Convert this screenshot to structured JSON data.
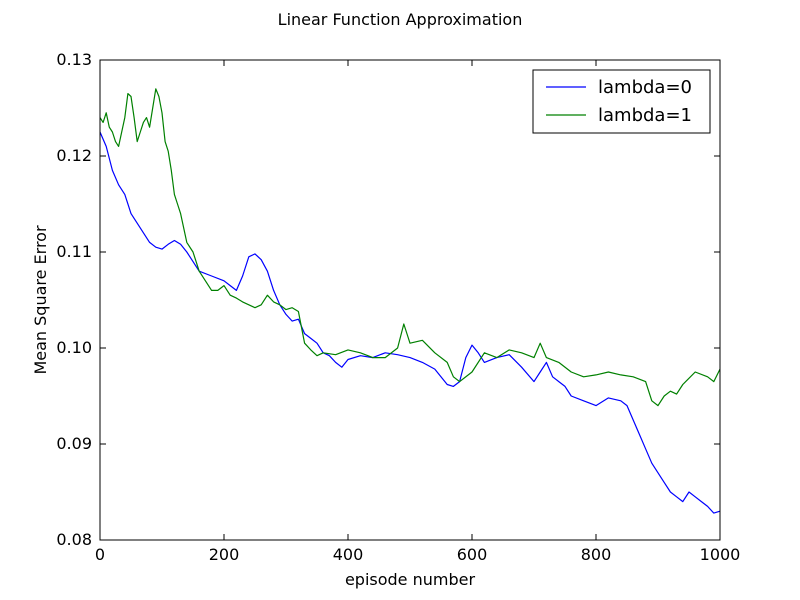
{
  "chart_data": {
    "type": "line",
    "title": "Linear Function Approximation",
    "xlabel": "episode number",
    "ylabel": "Mean Square Error",
    "xlim": [
      0,
      1000
    ],
    "ylim": [
      0.08,
      0.13
    ],
    "xticks": [
      0,
      200,
      400,
      600,
      800,
      1000
    ],
    "xtick_labels": [
      "0",
      "200",
      "400",
      "600",
      "800",
      "1000"
    ],
    "yticks": [
      0.08,
      0.09,
      0.1,
      0.11,
      0.12,
      0.13
    ],
    "ytick_labels": [
      "0.08",
      "0.09",
      "0.10",
      "0.11",
      "0.12",
      "0.13"
    ],
    "grid": false,
    "legend_position": "top-right",
    "series": [
      {
        "name": "lambda=0",
        "color": "#0000ff",
        "x": [
          0,
          10,
          20,
          30,
          40,
          50,
          60,
          70,
          80,
          90,
          100,
          110,
          120,
          130,
          140,
          150,
          160,
          180,
          200,
          210,
          220,
          230,
          240,
          250,
          260,
          270,
          280,
          290,
          300,
          310,
          320,
          330,
          340,
          350,
          360,
          370,
          380,
          390,
          400,
          420,
          440,
          460,
          480,
          500,
          520,
          540,
          560,
          570,
          580,
          590,
          600,
          610,
          620,
          640,
          660,
          680,
          700,
          710,
          720,
          730,
          740,
          750,
          760,
          780,
          800,
          820,
          840,
          850,
          860,
          870,
          880,
          890,
          900,
          910,
          920,
          930,
          940,
          950,
          960,
          970,
          980,
          990,
          1000
        ],
        "values": [
          0.1225,
          0.121,
          0.1185,
          0.117,
          0.116,
          0.114,
          0.113,
          0.112,
          0.111,
          0.1105,
          0.1103,
          0.1108,
          0.1112,
          0.1108,
          0.11,
          0.109,
          0.108,
          0.1075,
          0.107,
          0.1065,
          0.106,
          0.1075,
          0.1095,
          0.1098,
          0.1092,
          0.108,
          0.106,
          0.1045,
          0.1035,
          0.1028,
          0.103,
          0.1015,
          0.101,
          0.1005,
          0.0995,
          0.0992,
          0.0985,
          0.098,
          0.0988,
          0.0992,
          0.099,
          0.0995,
          0.0993,
          0.099,
          0.0985,
          0.0978,
          0.0962,
          0.096,
          0.0965,
          0.099,
          0.1003,
          0.0995,
          0.0985,
          0.099,
          0.0993,
          0.098,
          0.0965,
          0.0975,
          0.0985,
          0.097,
          0.0965,
          0.096,
          0.095,
          0.0945,
          0.094,
          0.0948,
          0.0945,
          0.094,
          0.0925,
          0.091,
          0.0895,
          0.088,
          0.087,
          0.086,
          0.085,
          0.0845,
          0.084,
          0.085,
          0.0845,
          0.084,
          0.0835,
          0.0828,
          0.083
        ]
      },
      {
        "name": "lambda=1",
        "color": "#008000",
        "x": [
          0,
          5,
          10,
          15,
          20,
          25,
          30,
          35,
          40,
          45,
          50,
          55,
          60,
          65,
          70,
          75,
          80,
          85,
          90,
          95,
          100,
          105,
          110,
          115,
          120,
          125,
          130,
          140,
          150,
          160,
          170,
          180,
          190,
          200,
          210,
          220,
          230,
          240,
          250,
          260,
          270,
          280,
          290,
          300,
          310,
          320,
          330,
          340,
          350,
          360,
          380,
          400,
          420,
          440,
          460,
          480,
          490,
          500,
          520,
          540,
          560,
          570,
          580,
          600,
          620,
          640,
          660,
          680,
          700,
          710,
          720,
          740,
          760,
          780,
          800,
          820,
          840,
          860,
          880,
          890,
          900,
          910,
          920,
          930,
          940,
          960,
          980,
          990,
          1000
        ],
        "values": [
          0.124,
          0.1235,
          0.1245,
          0.123,
          0.1225,
          0.1215,
          0.121,
          0.1225,
          0.124,
          0.1265,
          0.1262,
          0.124,
          0.1215,
          0.1225,
          0.1235,
          0.124,
          0.123,
          0.125,
          0.127,
          0.1262,
          0.1245,
          0.1215,
          0.1205,
          0.1185,
          0.116,
          0.115,
          0.114,
          0.111,
          0.11,
          0.108,
          0.107,
          0.106,
          0.106,
          0.1065,
          0.1055,
          0.1052,
          0.1048,
          0.1045,
          0.1042,
          0.1045,
          0.1055,
          0.1048,
          0.1045,
          0.104,
          0.1042,
          0.1038,
          0.1005,
          0.0998,
          0.0992,
          0.0995,
          0.0993,
          0.0998,
          0.0995,
          0.099,
          0.099,
          0.1,
          0.1025,
          0.1005,
          0.1008,
          0.0995,
          0.0985,
          0.097,
          0.0965,
          0.0975,
          0.0995,
          0.099,
          0.0998,
          0.0995,
          0.099,
          0.1005,
          0.099,
          0.0985,
          0.0975,
          0.097,
          0.0972,
          0.0975,
          0.0972,
          0.097,
          0.0965,
          0.0945,
          0.094,
          0.095,
          0.0955,
          0.0952,
          0.0962,
          0.0975,
          0.097,
          0.0965,
          0.0978
        ]
      }
    ]
  }
}
